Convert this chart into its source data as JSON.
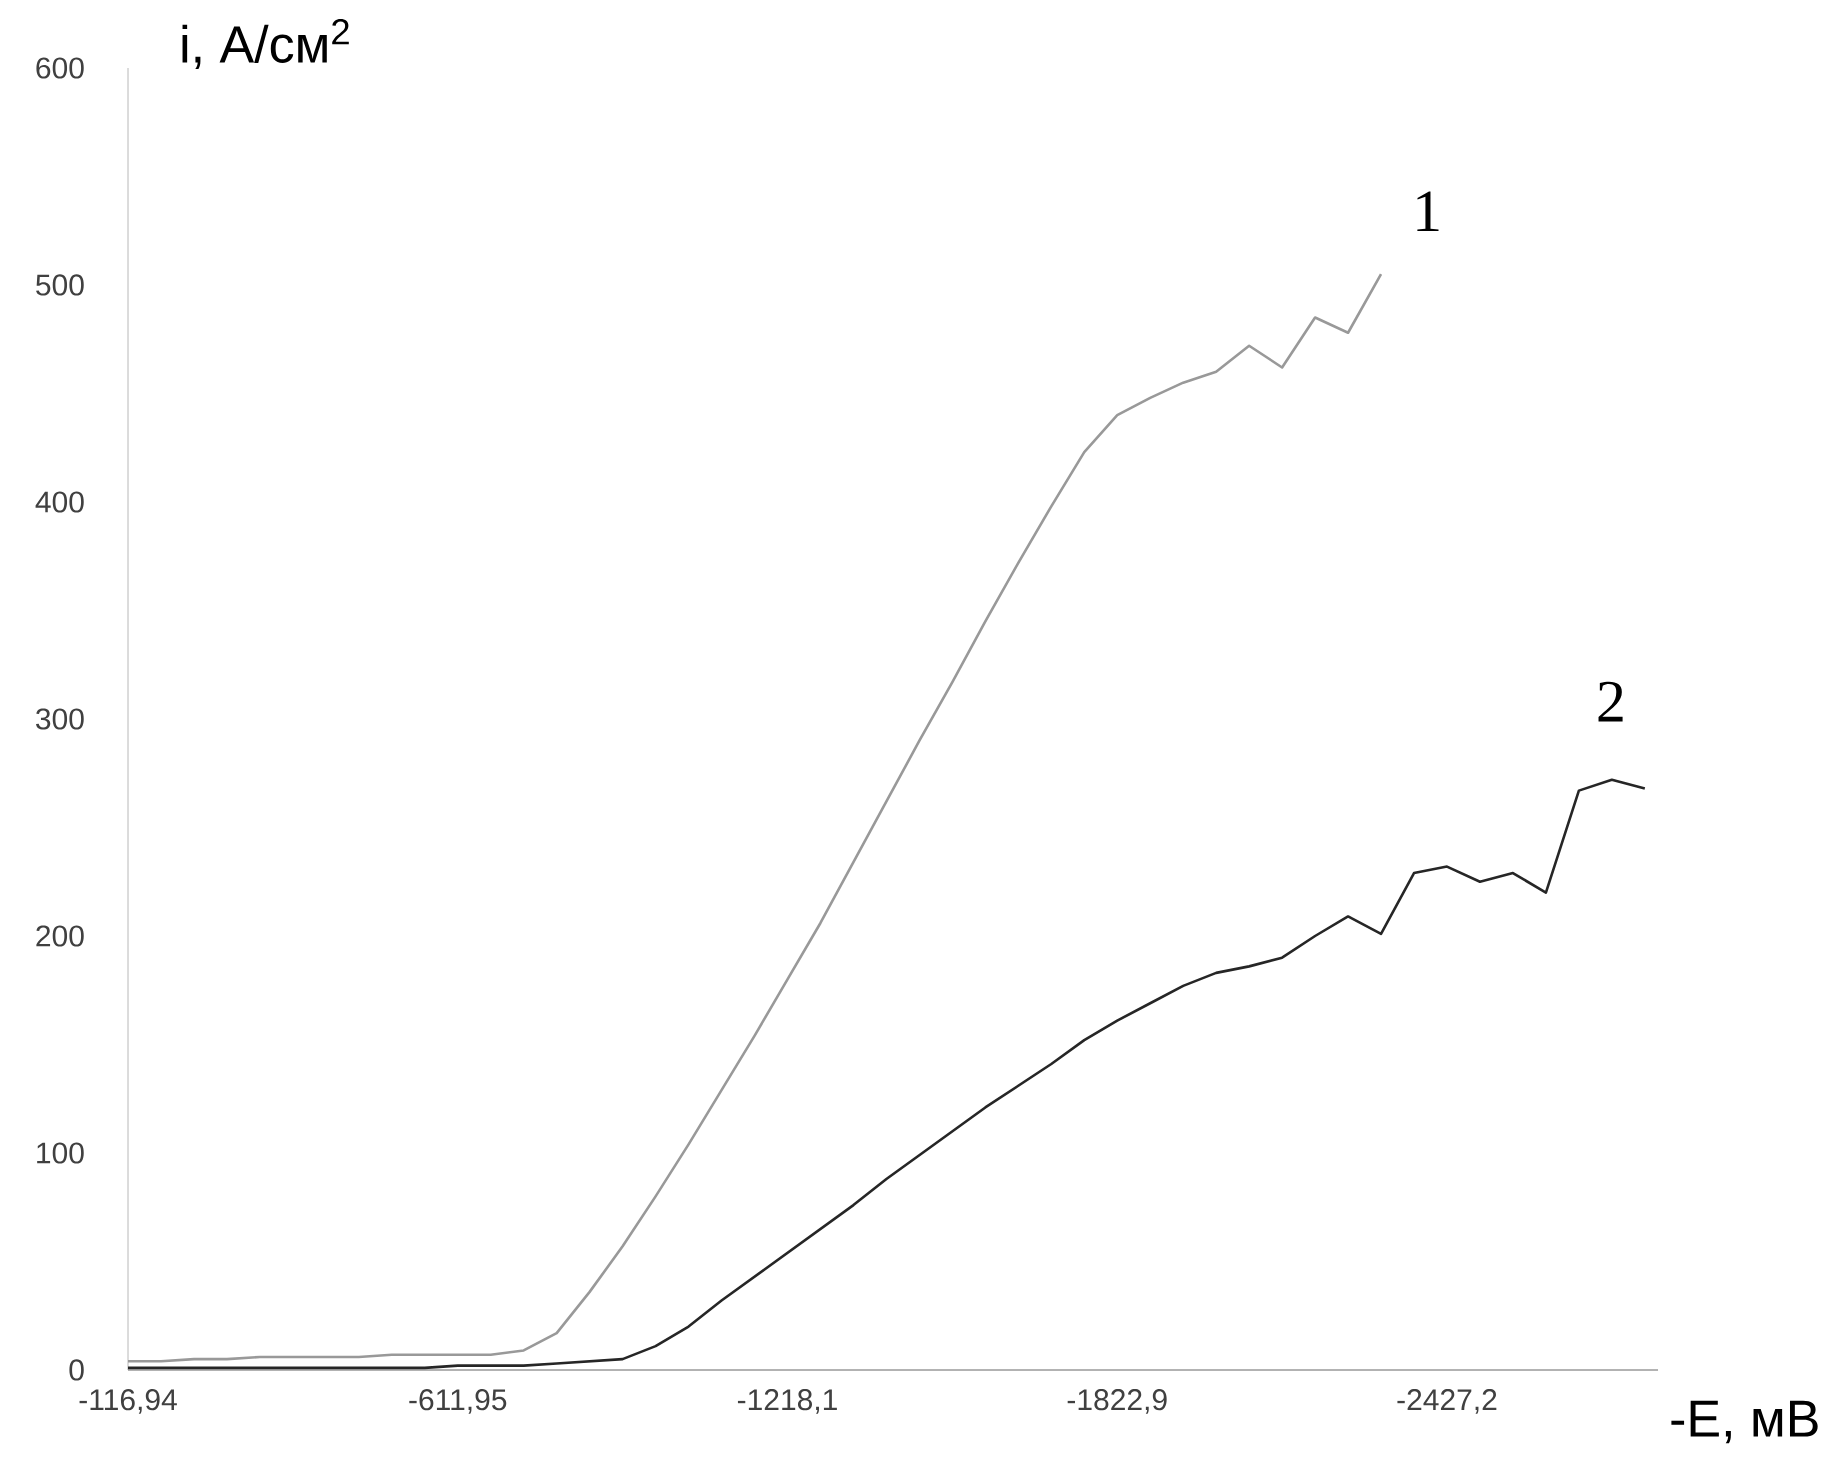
{
  "chart_data": {
    "type": "line",
    "xlabel": "-E, мВ",
    "ylabel": "i, А/см$^{2}$",
    "categories": [
      "-116,94",
      null,
      null,
      null,
      null,
      null,
      null,
      null,
      null,
      null,
      "-611,95",
      null,
      null,
      null,
      null,
      null,
      null,
      null,
      null,
      null,
      "-1218,1",
      null,
      null,
      null,
      null,
      null,
      null,
      null,
      null,
      null,
      "-1822,9",
      null,
      null,
      null,
      null,
      null,
      null,
      null,
      null,
      null,
      "-2427,2",
      null,
      null,
      null,
      null,
      null,
      null
    ],
    "ylim": [
      0,
      600
    ],
    "yticks": [
      0,
      100,
      200,
      300,
      400,
      500,
      600
    ],
    "series": [
      {
        "color": "#999999",
        "values": [
          4,
          4,
          5,
          5,
          6,
          6,
          6,
          6,
          7,
          7,
          7,
          7,
          9,
          17,
          36,
          57,
          80,
          104,
          129,
          154,
          180,
          206,
          234,
          262,
          290,
          317,
          345,
          372,
          398,
          423,
          440,
          448,
          455,
          460,
          472,
          462,
          485,
          478,
          505,
          null,
          null,
          null,
          null,
          null,
          null,
          null,
          null
        ]
      },
      {
        "color": "#262626",
        "values": [
          1,
          1,
          1,
          1,
          1,
          1,
          1,
          1,
          1,
          1,
          2,
          2,
          2,
          3,
          4,
          5,
          11,
          20,
          32,
          43,
          54,
          65,
          76,
          88,
          99,
          110,
          121,
          131,
          141,
          152,
          161,
          169,
          177,
          183,
          186,
          190,
          200,
          209,
          201,
          229,
          232,
          225,
          229,
          220,
          267,
          272,
          268
        ]
      }
    ],
    "annotations": [
      "1",
      "2"
    ]
  }
}
